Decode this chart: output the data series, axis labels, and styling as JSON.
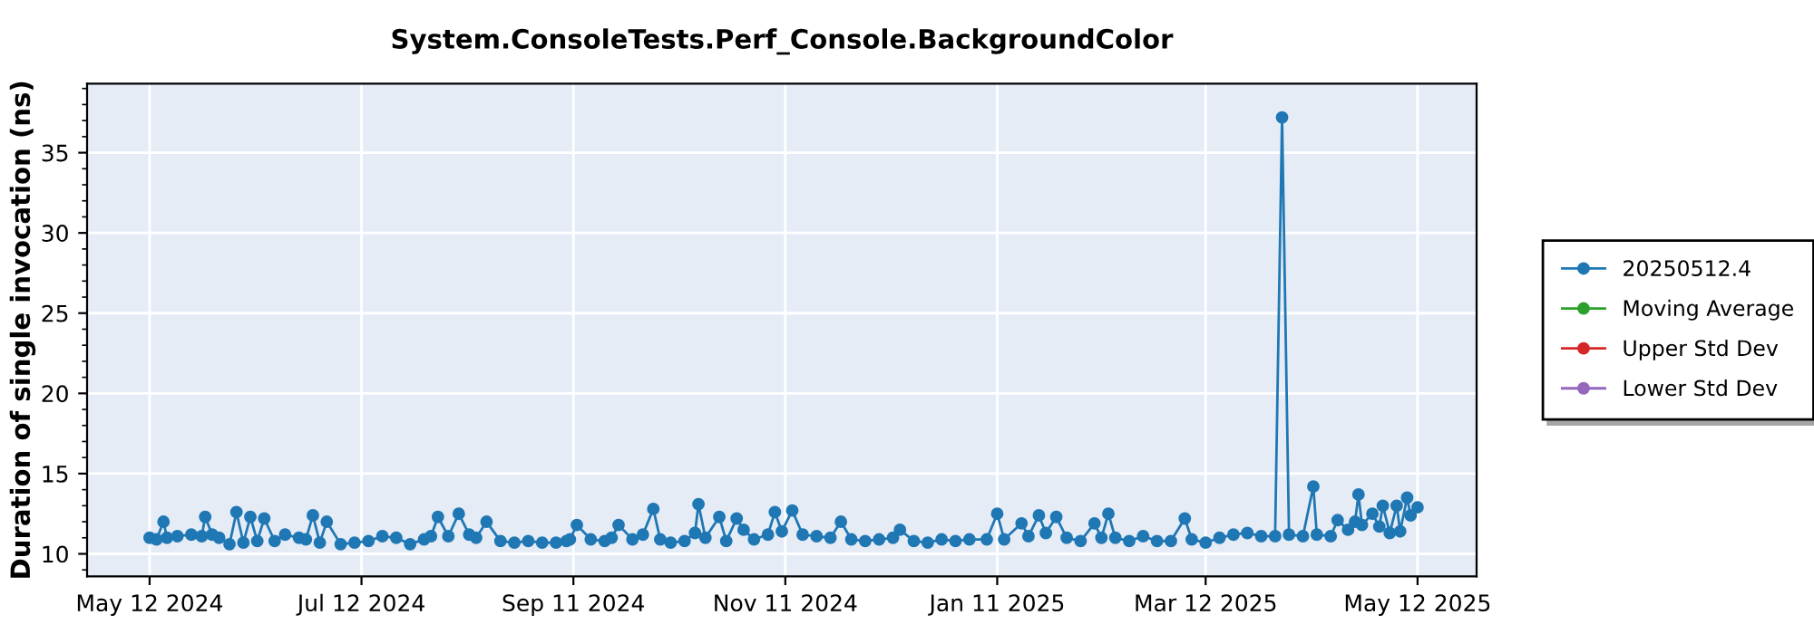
{
  "chart_data": {
    "type": "line",
    "title": "System.ConsoleTests.Perf_Console.BackgroundColor",
    "ylabel": "Duration of single invocation (ns)",
    "x": [
      "2024-05-12",
      "2024-05-14",
      "2024-05-16",
      "2024-05-17",
      "2024-05-20",
      "2024-05-24",
      "2024-05-27",
      "2024-05-28",
      "2024-05-30",
      "2024-06-01",
      "2024-06-04",
      "2024-06-06",
      "2024-06-08",
      "2024-06-10",
      "2024-06-12",
      "2024-06-14",
      "2024-06-17",
      "2024-06-20",
      "2024-06-24",
      "2024-06-26",
      "2024-06-28",
      "2024-06-30",
      "2024-07-02",
      "2024-07-06",
      "2024-07-10",
      "2024-07-14",
      "2024-07-18",
      "2024-07-22",
      "2024-07-26",
      "2024-07-30",
      "2024-08-01",
      "2024-08-03",
      "2024-08-06",
      "2024-08-09",
      "2024-08-12",
      "2024-08-14",
      "2024-08-17",
      "2024-08-21",
      "2024-08-25",
      "2024-08-29",
      "2024-09-02",
      "2024-09-06",
      "2024-09-09",
      "2024-09-10",
      "2024-09-12",
      "2024-09-16",
      "2024-09-20",
      "2024-09-22",
      "2024-09-24",
      "2024-09-28",
      "2024-10-01",
      "2024-10-04",
      "2024-10-06",
      "2024-10-09",
      "2024-10-13",
      "2024-10-16",
      "2024-10-17",
      "2024-10-19",
      "2024-10-23",
      "2024-10-25",
      "2024-10-28",
      "2024-10-30",
      "2024-11-02",
      "2024-11-06",
      "2024-11-08",
      "2024-11-10",
      "2024-11-13",
      "2024-11-16",
      "2024-11-20",
      "2024-11-24",
      "2024-11-27",
      "2024-11-30",
      "2024-12-04",
      "2024-12-08",
      "2024-12-12",
      "2024-12-14",
      "2024-12-18",
      "2024-12-22",
      "2024-12-26",
      "2024-12-30",
      "2025-01-03",
      "2025-01-08",
      "2025-01-11",
      "2025-01-13",
      "2025-01-18",
      "2025-01-20",
      "2025-01-23",
      "2025-01-25",
      "2025-01-28",
      "2025-01-31",
      "2025-02-04",
      "2025-02-08",
      "2025-02-10",
      "2025-02-12",
      "2025-02-14",
      "2025-02-18",
      "2025-02-22",
      "2025-02-26",
      "2025-03-02",
      "2025-03-06",
      "2025-03-08",
      "2025-03-12",
      "2025-03-16",
      "2025-03-20",
      "2025-03-24",
      "2025-03-28",
      "2025-04-01",
      "2025-04-03",
      "2025-04-05",
      "2025-04-09",
      "2025-04-12",
      "2025-04-13",
      "2025-04-17",
      "2025-04-19",
      "2025-04-22",
      "2025-04-24",
      "2025-04-25",
      "2025-04-26",
      "2025-04-29",
      "2025-05-01",
      "2025-05-02",
      "2025-05-04",
      "2025-05-06",
      "2025-05-07",
      "2025-05-09",
      "2025-05-10",
      "2025-05-12"
    ],
    "series": [
      {
        "name": "20250512.4",
        "color": "#1f77b4",
        "values": [
          11.0,
          10.9,
          12.0,
          11.0,
          11.1,
          11.2,
          11.1,
          12.3,
          11.2,
          11.0,
          10.6,
          12.6,
          10.7,
          12.3,
          10.8,
          12.2,
          10.8,
          11.2,
          11.0,
          10.9,
          12.4,
          10.7,
          12.0,
          10.6,
          10.7,
          10.8,
          11.1,
          11.0,
          10.6,
          10.9,
          11.1,
          12.3,
          11.1,
          12.5,
          11.2,
          11.0,
          12.0,
          10.8,
          10.7,
          10.8,
          10.7,
          10.7,
          10.8,
          10.9,
          11.8,
          10.9,
          10.8,
          11.0,
          11.8,
          10.9,
          11.2,
          12.8,
          10.9,
          10.7,
          10.8,
          11.3,
          13.1,
          11.0,
          12.3,
          10.8,
          12.2,
          11.5,
          10.9,
          11.2,
          12.6,
          11.4,
          12.7,
          11.2,
          11.1,
          11.0,
          12.0,
          10.9,
          10.8,
          10.9,
          11.0,
          11.5,
          10.8,
          10.7,
          10.9,
          10.8,
          10.9,
          10.9,
          12.5,
          10.9,
          11.9,
          11.1,
          12.4,
          11.3,
          12.3,
          11.0,
          10.8,
          11.9,
          11.0,
          12.5,
          11.0,
          10.8,
          11.1,
          10.8,
          10.8,
          12.2,
          10.9,
          10.7,
          11.0,
          11.2,
          11.3,
          11.1,
          11.1,
          37.2,
          11.2,
          11.1,
          14.2,
          11.2,
          11.1,
          12.1,
          11.5,
          12.0,
          13.7,
          11.8,
          12.5,
          11.7,
          13.0,
          11.3,
          13.0,
          11.4,
          13.5,
          12.4,
          12.9
        ]
      },
      {
        "name": "Moving Average",
        "color": "#2ca02c",
        "values": [
          null,
          null,
          null,
          null,
          null,
          null,
          null,
          null,
          null,
          null,
          null,
          null,
          null,
          null,
          null,
          null,
          null,
          null,
          null,
          null,
          null,
          null,
          null,
          null,
          null,
          null,
          null,
          null,
          null,
          null,
          null,
          null,
          null,
          null,
          null,
          null,
          null,
          null,
          null,
          null,
          null,
          null,
          null,
          null,
          null,
          null,
          null,
          null,
          null,
          null,
          null,
          null,
          null,
          null,
          null,
          null,
          null,
          null,
          null,
          null,
          null,
          null,
          null,
          null,
          null,
          null,
          null,
          null,
          null,
          null,
          null,
          null,
          null,
          null,
          null,
          null,
          null,
          null,
          null,
          null,
          null,
          null,
          null,
          null,
          null,
          null,
          null,
          null,
          null,
          null,
          null,
          null,
          null,
          null,
          null,
          null,
          null,
          null,
          null,
          null,
          null,
          null,
          null,
          null,
          null,
          null,
          null,
          null,
          null,
          null,
          null,
          null,
          null,
          null,
          null,
          null,
          null,
          null,
          null,
          null,
          null,
          null,
          null,
          null,
          null,
          null,
          null
        ]
      },
      {
        "name": "Upper Std Dev",
        "color": "#d62728",
        "values": [
          null,
          null,
          null,
          null,
          null,
          null,
          null,
          null,
          null,
          null,
          null,
          null,
          null,
          null,
          null,
          null,
          null,
          null,
          null,
          null,
          null,
          null,
          null,
          null,
          null,
          null,
          null,
          null,
          null,
          null,
          null,
          null,
          null,
          null,
          null,
          null,
          null,
          null,
          null,
          null,
          null,
          null,
          null,
          null,
          null,
          null,
          null,
          null,
          null,
          null,
          null,
          null,
          null,
          null,
          null,
          null,
          null,
          null,
          null,
          null,
          null,
          null,
          null,
          null,
          null,
          null,
          null,
          null,
          null,
          null,
          null,
          null,
          null,
          null,
          null,
          null,
          null,
          null,
          null,
          null,
          null,
          null,
          null,
          null,
          null,
          null,
          null,
          null,
          null,
          null,
          null,
          null,
          null,
          null,
          null,
          null,
          null,
          null,
          null,
          null,
          null,
          null,
          null,
          null,
          null,
          null,
          null,
          null,
          null,
          null,
          null,
          null,
          null,
          null,
          null,
          null,
          null,
          null,
          null,
          null,
          null,
          null,
          null,
          null,
          null,
          null,
          null
        ]
      },
      {
        "name": "Lower Std Dev",
        "color": "#9467bd",
        "values": [
          null,
          null,
          null,
          null,
          null,
          null,
          null,
          null,
          null,
          null,
          null,
          null,
          null,
          null,
          null,
          null,
          null,
          null,
          null,
          null,
          null,
          null,
          null,
          null,
          null,
          null,
          null,
          null,
          null,
          null,
          null,
          null,
          null,
          null,
          null,
          null,
          null,
          null,
          null,
          null,
          null,
          null,
          null,
          null,
          null,
          null,
          null,
          null,
          null,
          null,
          null,
          null,
          null,
          null,
          null,
          null,
          null,
          null,
          null,
          null,
          null,
          null,
          null,
          null,
          null,
          null,
          null,
          null,
          null,
          null,
          null,
          null,
          null,
          null,
          null,
          null,
          null,
          null,
          null,
          null,
          null,
          null,
          null,
          null,
          null,
          null,
          null,
          null,
          null,
          null,
          null,
          null,
          null,
          null,
          null,
          null,
          null,
          null,
          null,
          null,
          null,
          null,
          null,
          null,
          null,
          null,
          null,
          null,
          null,
          null,
          null,
          null,
          null,
          null,
          null,
          null,
          null,
          null,
          null,
          null,
          null,
          null,
          null,
          null,
          null,
          null,
          null
        ]
      }
    ],
    "xlim": [
      "2024-04-24",
      "2025-05-29"
    ],
    "xticks": [
      {
        "value": "2024-05-12",
        "label": "May 12 2024"
      },
      {
        "value": "2024-07-12",
        "label": "Jul 12 2024"
      },
      {
        "value": "2024-09-11",
        "label": "Sep 11 2024"
      },
      {
        "value": "2024-11-11",
        "label": "Nov 11 2024"
      },
      {
        "value": "2025-01-11",
        "label": "Jan 11 2025"
      },
      {
        "value": "2025-03-12",
        "label": "Mar 12 2025"
      },
      {
        "value": "2025-05-12",
        "label": "May 12 2025"
      }
    ],
    "ylim": [
      8.6,
      39.3
    ],
    "yticks": [
      10,
      15,
      20,
      25,
      30,
      35
    ],
    "grid": true,
    "legend": "right",
    "marker": "circle",
    "line_style": "solid"
  }
}
